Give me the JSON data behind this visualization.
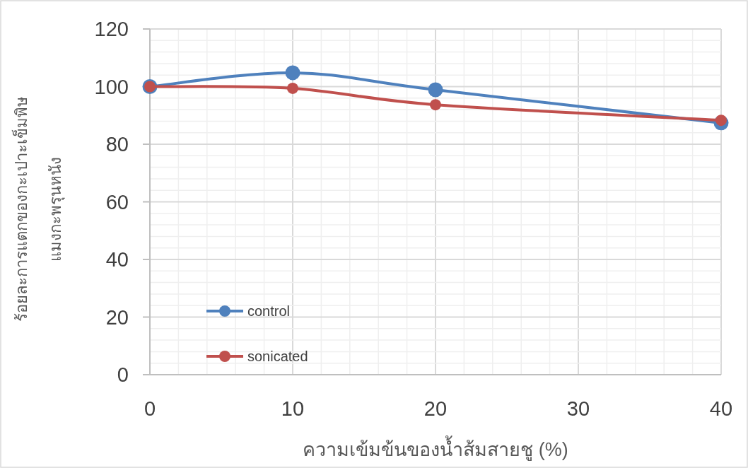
{
  "chart_data": {
    "type": "line",
    "xlabel": "ความเข้มข้นของน้ำส้มสายชู (%)",
    "ylabel": "ร้อยละการแตกของกะเปาะเข็มพิษ\nแมงกะพรุนหนัง",
    "series": [
      {
        "name": "control",
        "color": "#4f81bd",
        "x": [
          0,
          10,
          20,
          40
        ],
        "values": [
          100,
          104.8,
          98.9,
          87.4
        ]
      },
      {
        "name": "sonicated",
        "color": "#c0504d",
        "x": [
          0,
          10,
          20,
          40
        ],
        "values": [
          100,
          99.4,
          93.7,
          88.3
        ]
      }
    ],
    "xlim": [
      0,
      40
    ],
    "xticks": [
      0,
      {
        "value": 2,
        "label": null
      },
      {
        "value": 4,
        "label": null
      },
      {
        "value": 6,
        "label": null
      },
      {
        "value": 8,
        "label": null
      },
      10,
      {
        "value": 12,
        "label": null
      },
      {
        "value": 14,
        "label": null
      },
      {
        "value": 16,
        "label": null
      },
      {
        "value": 18,
        "label": null
      },
      20,
      {
        "value": 22,
        "label": null
      },
      {
        "value": 24,
        "label": null
      },
      {
        "value": 26,
        "label": null
      },
      {
        "value": 28,
        "label": null
      },
      30,
      {
        "value": 32,
        "label": null
      },
      {
        "value": 34,
        "label": null
      },
      {
        "value": 36,
        "label": null
      },
      {
        "value": 38,
        "label": null
      },
      40
    ],
    "ylim": [
      0,
      120
    ],
    "yticks": [
      0,
      {
        "value": 4,
        "label": null
      },
      {
        "value": 8,
        "label": null
      },
      {
        "value": 12,
        "label": null
      },
      {
        "value": 16,
        "label": null
      },
      20,
      {
        "value": 24,
        "label": null
      },
      {
        "value": 28,
        "label": null
      },
      {
        "value": 32,
        "label": null
      },
      {
        "value": 36,
        "label": null
      },
      40,
      {
        "value": 44,
        "label": null
      },
      {
        "value": 48,
        "label": null
      },
      {
        "value": 52,
        "label": null
      },
      {
        "value": 56,
        "label": null
      },
      60,
      {
        "value": 64,
        "label": null
      },
      {
        "value": 68,
        "label": null
      },
      {
        "value": 72,
        "label": null
      },
      {
        "value": 76,
        "label": null
      },
      80,
      {
        "value": 84,
        "label": null
      },
      {
        "value": 88,
        "label": null
      },
      {
        "value": 92,
        "label": null
      },
      {
        "value": 96,
        "label": null
      },
      100,
      {
        "value": 104,
        "label": null
      },
      {
        "value": 108,
        "label": null
      },
      {
        "value": 112,
        "label": null
      },
      {
        "value": 116,
        "label": null
      },
      120
    ],
    "grid": true,
    "legend": "bottom left",
    "marker": "circle",
    "line_style": "solid"
  }
}
